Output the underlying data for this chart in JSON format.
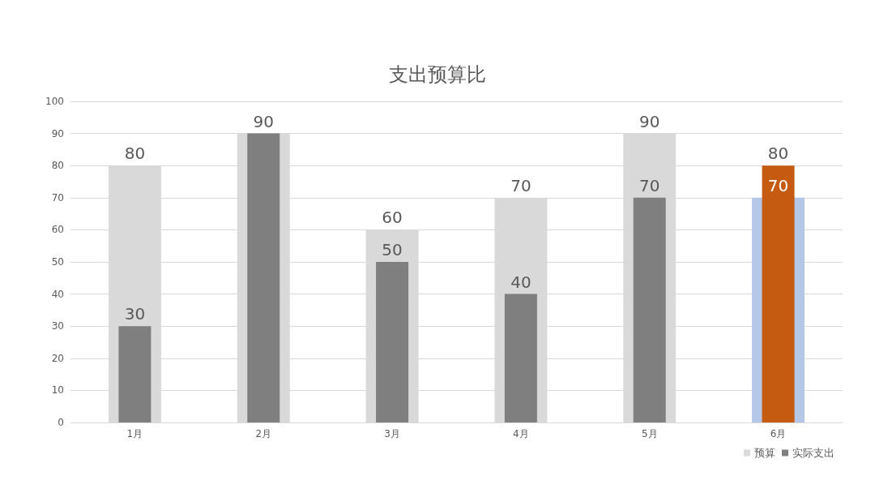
{
  "chart_data": {
    "type": "bar",
    "title": "支出预算比",
    "categories": [
      "1月",
      "2月",
      "3月",
      "4月",
      "5月",
      "6月"
    ],
    "series": [
      {
        "name": "预算",
        "color": "#d9d9d9",
        "colors": [
          "#d9d9d9",
          "#d9d9d9",
          "#d9d9d9",
          "#d9d9d9",
          "#d9d9d9",
          "#b4c7e7"
        ],
        "values": [
          80,
          90,
          60,
          70,
          90,
          70
        ],
        "value_labels": [
          "80",
          null,
          "60",
          "70",
          "90",
          "70"
        ]
      },
      {
        "name": "实际支出",
        "color": "#7f7f7f",
        "colors": [
          "#7f7f7f",
          "#7f7f7f",
          "#7f7f7f",
          "#7f7f7f",
          "#7f7f7f",
          "#c55a11"
        ],
        "values": [
          30,
          90,
          50,
          40,
          70,
          80
        ],
        "value_labels": [
          "30",
          "90",
          "50",
          "40",
          "70",
          "80"
        ]
      }
    ],
    "ylim": [
      0,
      100
    ],
    "yticks": [
      0,
      10,
      20,
      30,
      40,
      50,
      60,
      70,
      80,
      90,
      100
    ],
    "grid": "y",
    "legend": "bottom right"
  }
}
